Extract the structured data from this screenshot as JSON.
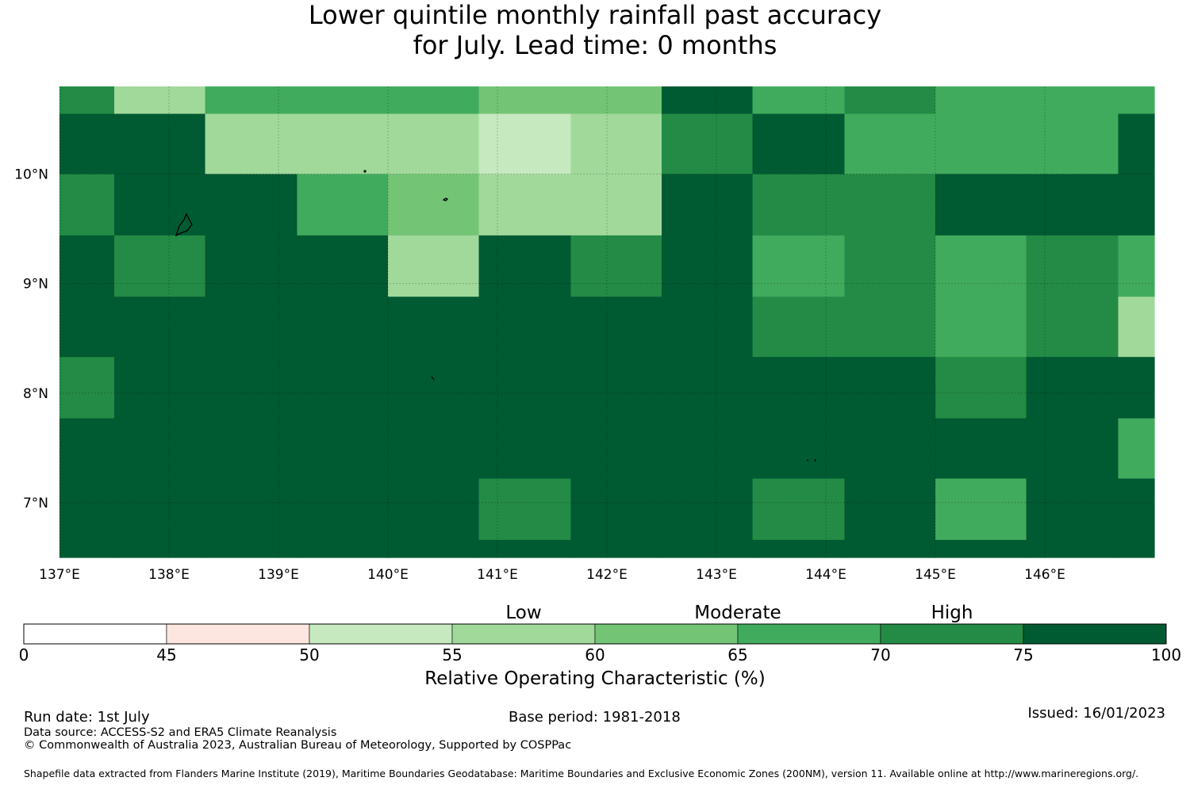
{
  "title": {
    "line1": "Lower quintile monthly rainfall past accuracy",
    "line2": "for July. Lead time: 0 months"
  },
  "map": {
    "lon_range": [
      137.0,
      147.0
    ],
    "lat_range": [
      6.5,
      10.8
    ],
    "lon_ticks": [
      {
        "value": 137,
        "label": "137°E"
      },
      {
        "value": 138,
        "label": "138°E"
      },
      {
        "value": 139,
        "label": "139°E"
      },
      {
        "value": 140,
        "label": "140°E"
      },
      {
        "value": 141,
        "label": "141°E"
      },
      {
        "value": 142,
        "label": "142°E"
      },
      {
        "value": 143,
        "label": "143°E"
      },
      {
        "value": 144,
        "label": "144°E"
      },
      {
        "value": 145,
        "label": "145°E"
      },
      {
        "value": 146,
        "label": "146°E"
      }
    ],
    "lat_ticks": [
      {
        "value": 10,
        "label": "10°N"
      },
      {
        "value": 9,
        "label": "9°N"
      },
      {
        "value": 8,
        "label": "8°N"
      },
      {
        "value": 7,
        "label": "7°N"
      }
    ],
    "grid_lines": true,
    "cell_columns_lon": [
      137.0,
      137.5,
      138.33,
      139.17,
      140.0,
      140.83,
      141.67,
      142.5,
      143.33,
      144.17,
      145.0,
      145.83,
      146.67,
      147.0
    ],
    "cell_rows_lat": [
      10.8,
      10.55,
      10.0,
      9.44,
      8.88,
      8.33,
      7.77,
      7.22,
      6.66,
      6.5
    ],
    "cell_classes": [
      [
        6,
        3,
        5,
        5,
        5,
        4,
        4,
        7,
        5,
        6,
        5,
        5,
        5
      ],
      [
        7,
        7,
        3,
        3,
        3,
        2,
        3,
        6,
        7,
        5,
        5,
        5,
        7
      ],
      [
        6,
        7,
        7,
        5,
        4,
        3,
        3,
        7,
        6,
        6,
        7,
        7,
        7
      ],
      [
        7,
        6,
        7,
        7,
        3,
        7,
        6,
        7,
        5,
        6,
        5,
        6,
        5
      ],
      [
        7,
        7,
        7,
        7,
        7,
        7,
        7,
        7,
        6,
        6,
        5,
        6,
        3
      ],
      [
        6,
        7,
        7,
        7,
        7,
        7,
        7,
        7,
        7,
        7,
        6,
        7,
        7
      ],
      [
        7,
        7,
        7,
        7,
        7,
        7,
        7,
        7,
        7,
        7,
        7,
        7,
        5
      ],
      [
        7,
        7,
        7,
        7,
        7,
        6,
        7,
        7,
        6,
        7,
        5,
        7,
        7
      ],
      [
        7,
        7,
        7,
        7,
        7,
        7,
        7,
        7,
        7,
        7,
        7,
        7,
        7
      ]
    ]
  },
  "colorbar": {
    "band_labels": [
      {
        "label": "Low",
        "position": 57.5
      },
      {
        "label": "Moderate",
        "position": 65
      },
      {
        "label": "High",
        "position": 72.5
      }
    ],
    "segments": [
      {
        "from": "0",
        "to": "45",
        "color": "#ffffff"
      },
      {
        "from": "45",
        "to": "50",
        "color": "#fee6e0"
      },
      {
        "from": "50",
        "to": "55",
        "color": "#c7e9c0"
      },
      {
        "from": "55",
        "to": "60",
        "color": "#a1d99b"
      },
      {
        "from": "60",
        "to": "65",
        "color": "#74c476"
      },
      {
        "from": "65",
        "to": "70",
        "color": "#41ab5d"
      },
      {
        "from": "70",
        "to": "75",
        "color": "#238b45"
      },
      {
        "from": "75",
        "to": "100",
        "color": "#005a32"
      }
    ],
    "tick_labels": [
      "0",
      "45",
      "50",
      "55",
      "60",
      "65",
      "70",
      "75",
      "100"
    ],
    "label": "Relative Operating Characteristic (%)"
  },
  "footer": {
    "run_date": "Run date: 1st July",
    "base_period": "Base period: 1981-2018",
    "issued": "Issued: 16/01/2023",
    "data_source": "Data source: ACCESS-S2 and ERA5 Climate Reanalysis",
    "copyright": "© Commonwealth of Australia 2023, Australian Bureau of Meteorology, Supported by COSPPac",
    "shapefile": "Shapefile data extracted from Flanders Marine Institute (2019), Maritime Boundaries Geodatabase: Maritime Boundaries and Exclusive Economic Zones (200NM), version 11. Available online at http://www.marineregions.org/."
  }
}
